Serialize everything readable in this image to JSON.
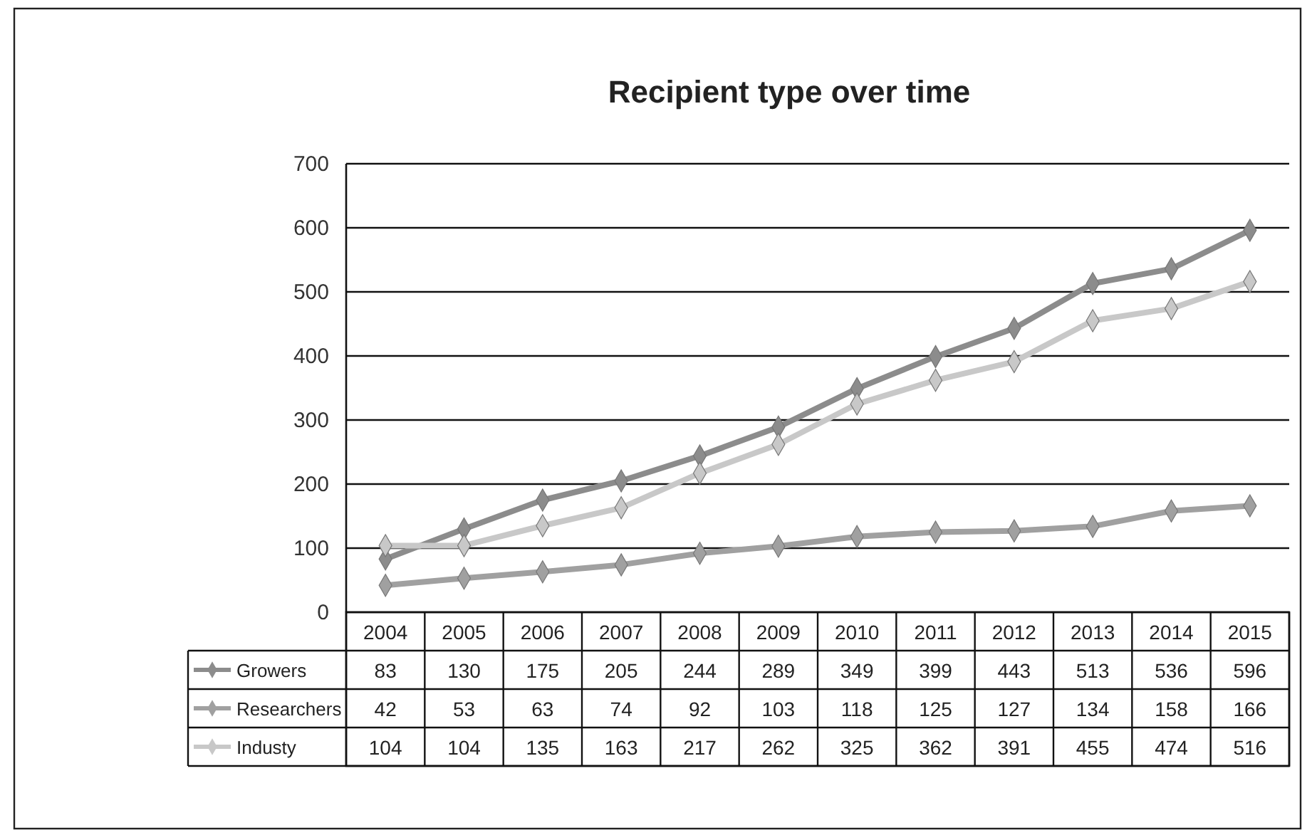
{
  "chart_data": {
    "type": "line",
    "title": "Recipient type over time",
    "categories": [
      "2004",
      "2005",
      "2006",
      "2007",
      "2008",
      "2009",
      "2010",
      "2011",
      "2012",
      "2013",
      "2014",
      "2015"
    ],
    "series": [
      {
        "name": "Growers",
        "color": "#8c8c8c",
        "values": [
          83,
          130,
          175,
          205,
          244,
          289,
          349,
          399,
          443,
          513,
          536,
          596
        ]
      },
      {
        "name": "Researchers",
        "color": "#a0a0a0",
        "values": [
          42,
          53,
          63,
          74,
          92,
          103,
          118,
          125,
          127,
          134,
          158,
          166
        ]
      },
      {
        "name": "Industy",
        "color": "#c8c8c8",
        "values": [
          104,
          104,
          135,
          163,
          217,
          262,
          325,
          362,
          391,
          455,
          474,
          516
        ]
      }
    ],
    "ylim": [
      0,
      700
    ],
    "yticks": [
      0,
      100,
      200,
      300,
      400,
      500,
      600,
      700
    ],
    "grid": "y",
    "marker": "diamond",
    "line_style": "solid",
    "data_labels": true,
    "legend": "bottom"
  }
}
